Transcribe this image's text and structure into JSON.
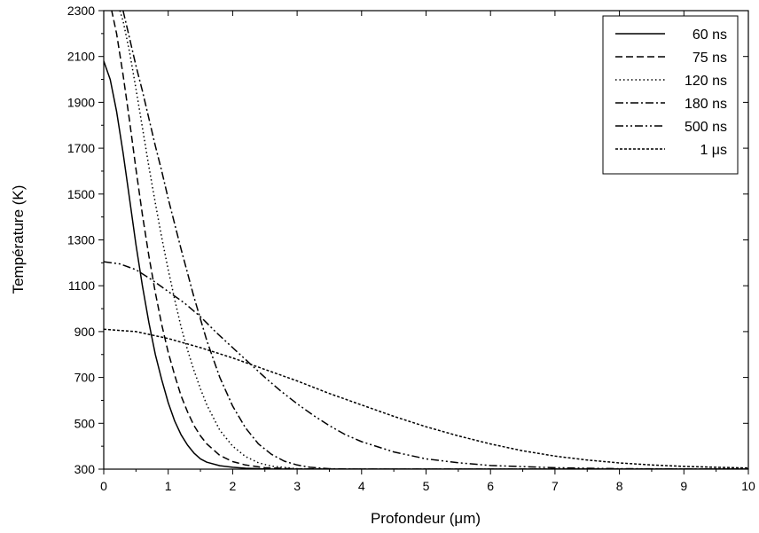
{
  "chart_data": {
    "type": "line",
    "title": "",
    "xlabel": "Profondeur (μm)",
    "ylabel": "Température (K)",
    "xlim": [
      0,
      10
    ],
    "ylim": [
      300,
      2300
    ],
    "x_ticks": [
      0,
      1,
      2,
      3,
      4,
      5,
      6,
      7,
      8,
      9,
      10
    ],
    "y_ticks": [
      300,
      500,
      700,
      900,
      1100,
      1300,
      1500,
      1700,
      1900,
      2100,
      2300
    ],
    "grid": false,
    "legend_position": "top-right",
    "series": [
      {
        "name": "60 ns",
        "line_style": "solid",
        "x": [
          0,
          0.1,
          0.2,
          0.3,
          0.4,
          0.5,
          0.6,
          0.7,
          0.8,
          0.9,
          1.0,
          1.1,
          1.2,
          1.3,
          1.4,
          1.5,
          1.6,
          1.8,
          2.0,
          2.2,
          2.5,
          3.0,
          4.0,
          6.0,
          8.0,
          10.0
        ],
        "y": [
          2080,
          2000,
          1860,
          1680,
          1480,
          1280,
          1100,
          940,
          800,
          690,
          590,
          510,
          450,
          405,
          370,
          345,
          330,
          315,
          308,
          304,
          301,
          300,
          300,
          300,
          300,
          300
        ]
      },
      {
        "name": "75 ns",
        "line_style": "dashed",
        "x": [
          0,
          0.1,
          0.2,
          0.3,
          0.4,
          0.5,
          0.6,
          0.7,
          0.8,
          0.9,
          1.0,
          1.1,
          1.2,
          1.3,
          1.4,
          1.5,
          1.6,
          1.8,
          2.0,
          2.2,
          2.5,
          3.0,
          3.5,
          4.0,
          6.0,
          10.0
        ],
        "y": [
          2390,
          2330,
          2200,
          2020,
          1820,
          1610,
          1410,
          1230,
          1070,
          930,
          810,
          710,
          620,
          550,
          490,
          445,
          410,
          360,
          333,
          318,
          306,
          301,
          300,
          300,
          300,
          300
        ]
      },
      {
        "name": "120 ns",
        "line_style": "dotted",
        "x": [
          0.25,
          0.3,
          0.4,
          0.5,
          0.6,
          0.7,
          0.8,
          0.9,
          1.0,
          1.1,
          1.2,
          1.3,
          1.4,
          1.5,
          1.6,
          1.8,
          2.0,
          2.2,
          2.4,
          2.6,
          3.0,
          3.5,
          4.0,
          6.0,
          10.0
        ],
        "y": [
          2300,
          2255,
          2120,
          1960,
          1790,
          1620,
          1460,
          1310,
          1170,
          1040,
          920,
          820,
          730,
          650,
          580,
          470,
          400,
          355,
          328,
          313,
          302,
          300,
          300,
          300,
          300
        ]
      },
      {
        "name": "180 ns",
        "line_style": "dash-dot",
        "x": [
          0.3,
          0.4,
          0.5,
          0.6,
          0.7,
          0.8,
          0.9,
          1.0,
          1.2,
          1.4,
          1.6,
          1.8,
          2.0,
          2.2,
          2.4,
          2.6,
          2.8,
          3.0,
          3.2,
          3.5,
          4.0,
          4.5,
          5.0,
          6.0,
          10.0
        ],
        "y": [
          2300,
          2180,
          2060,
          1950,
          1830,
          1710,
          1600,
          1480,
          1260,
          1050,
          860,
          700,
          575,
          480,
          410,
          365,
          335,
          318,
          308,
          302,
          300,
          300,
          300,
          300,
          300
        ]
      },
      {
        "name": "500 ns",
        "line_style": "dash-dot-dot",
        "x": [
          0,
          0.25,
          0.5,
          0.75,
          1.0,
          1.25,
          1.5,
          1.75,
          2.0,
          2.25,
          2.5,
          2.75,
          3.0,
          3.25,
          3.5,
          3.75,
          4.0,
          4.5,
          5.0,
          5.5,
          6.0,
          7.0,
          8.0,
          9.0,
          10.0
        ],
        "y": [
          1205,
          1195,
          1170,
          1125,
          1075,
          1025,
          965,
          895,
          830,
          765,
          700,
          640,
          585,
          535,
          490,
          450,
          420,
          375,
          345,
          328,
          316,
          306,
          302,
          301,
          300
        ]
      },
      {
        "name": "1 μs",
        "line_style": "short-dash",
        "x": [
          0,
          0.5,
          1.0,
          1.5,
          2.0,
          2.5,
          3.0,
          3.5,
          4.0,
          4.5,
          5.0,
          5.5,
          6.0,
          6.5,
          7.0,
          7.5,
          8.0,
          8.5,
          9.0,
          9.5,
          10.0
        ],
        "y": [
          910,
          900,
          870,
          830,
          785,
          735,
          685,
          630,
          580,
          530,
          485,
          445,
          410,
          380,
          357,
          340,
          327,
          318,
          312,
          308,
          305
        ]
      }
    ]
  }
}
